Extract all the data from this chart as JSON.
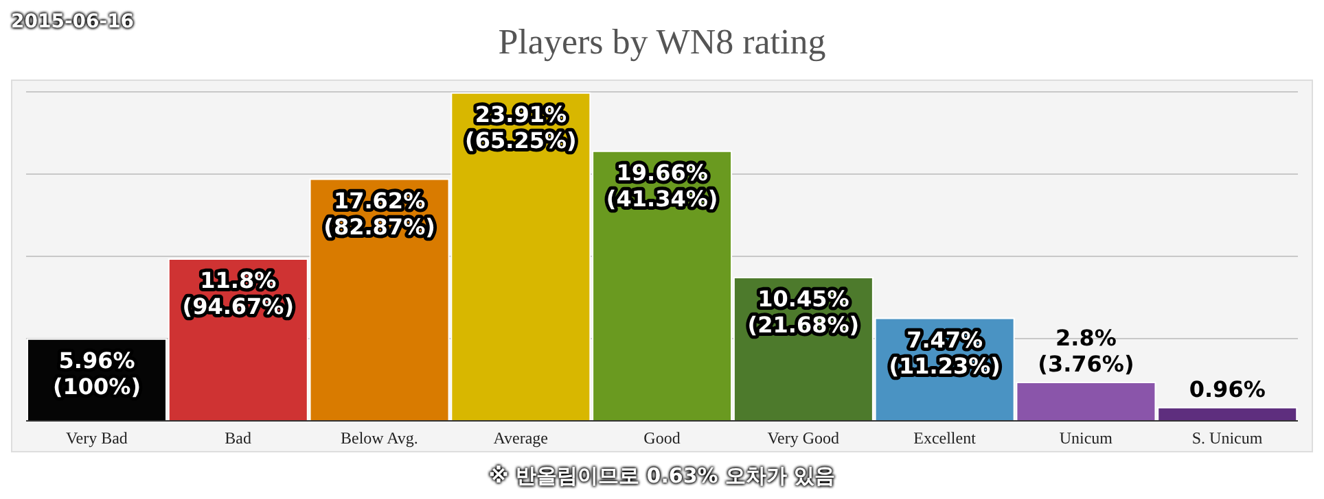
{
  "chart_data": {
    "type": "bar",
    "title": "Players by WN8 rating",
    "categories": [
      "Very Bad",
      "Bad",
      "Below Avg.",
      "Average",
      "Good",
      "Very Good",
      "Excellent",
      "Unicum",
      "S. Unicum"
    ],
    "values": [
      5.96,
      11.8,
      17.62,
      23.91,
      19.66,
      10.45,
      7.47,
      2.8,
      0.96
    ],
    "colors": [
      "#050505",
      "#cf3333",
      "#d97b00",
      "#d8b700",
      "#6a9a20",
      "#4d7a2c",
      "#4a93c3",
      "#8a55aa",
      "#5e2e7e"
    ],
    "value_labels": [
      "5.96%\n(100%)",
      "11.8%\n(94.67%)",
      "17.62%\n(82.87%)",
      "23.91%\n(65.25%)",
      "19.66%\n(41.34%)",
      "10.45%\n(21.68%)",
      "7.47%\n(11.23%)",
      "2.8%\n(3.76%)",
      "0.96%"
    ],
    "ylim": [
      0,
      24
    ],
    "yticks": [
      {
        "value": 6,
        "label": null
      },
      {
        "value": 12,
        "label": null
      },
      {
        "value": 18,
        "label": null
      }
    ],
    "grid": "y",
    "tick_labels": "x",
    "annotations": [
      "2015-06-16",
      "※ 반올림이므로 0.63% 오차가 있음"
    ]
  }
}
